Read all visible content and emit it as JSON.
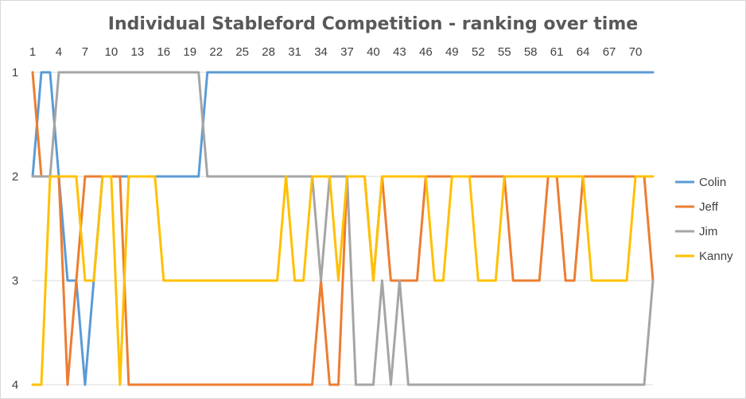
{
  "chart_data": {
    "type": "line",
    "title": "Individual Stableford Competition -  ranking over time",
    "xlabel": "",
    "ylabel": "",
    "x": [
      1,
      2,
      3,
      4,
      5,
      6,
      7,
      8,
      9,
      10,
      11,
      12,
      13,
      14,
      15,
      16,
      17,
      18,
      19,
      20,
      21,
      22,
      23,
      24,
      25,
      26,
      27,
      28,
      29,
      30,
      31,
      32,
      33,
      34,
      35,
      36,
      37,
      38,
      39,
      40,
      41,
      42,
      43,
      44,
      45,
      46,
      47,
      48,
      49,
      50,
      51,
      52,
      53,
      54,
      55,
      56,
      57,
      58,
      59,
      60,
      61,
      62,
      63,
      64,
      65,
      66,
      67,
      68,
      69,
      70,
      71,
      72
    ],
    "x_tick_labels": [
      "1",
      "4",
      "7",
      "10",
      "13",
      "16",
      "19",
      "22",
      "25",
      "28",
      "31",
      "34",
      "37",
      "40",
      "43",
      "46",
      "49",
      "52",
      "55",
      "58",
      "61",
      "64",
      "67",
      "70"
    ],
    "ylim": [
      1,
      4
    ],
    "y_ticks": [
      1,
      2,
      3,
      4
    ],
    "y_reversed": true,
    "y_axis_position": "top",
    "grid": true,
    "legend_position": "right",
    "series": [
      {
        "name": "Colin",
        "color": "#5B9BD5",
        "values": [
          2,
          1,
          1,
          2,
          3,
          3,
          4,
          3,
          2,
          2,
          2,
          2,
          2,
          2,
          2,
          2,
          2,
          2,
          2,
          2,
          1,
          1,
          1,
          1,
          1,
          1,
          1,
          1,
          1,
          1,
          1,
          1,
          1,
          1,
          1,
          1,
          1,
          1,
          1,
          1,
          1,
          1,
          1,
          1,
          1,
          1,
          1,
          1,
          1,
          1,
          1,
          1,
          1,
          1,
          1,
          1,
          1,
          1,
          1,
          1,
          1,
          1,
          1,
          1,
          1,
          1,
          1,
          1,
          1,
          1,
          1,
          1
        ]
      },
      {
        "name": "Jeff",
        "color": "#ED7D31",
        "values": [
          1,
          2,
          2,
          2,
          4,
          3,
          2,
          2,
          2,
          2,
          2,
          4,
          4,
          4,
          4,
          4,
          4,
          4,
          4,
          4,
          4,
          4,
          4,
          4,
          4,
          4,
          4,
          4,
          4,
          4,
          4,
          4,
          4,
          3,
          4,
          4,
          2,
          2,
          2,
          3,
          2,
          3,
          3,
          3,
          3,
          2,
          2,
          2,
          2,
          2,
          2,
          2,
          2,
          2,
          2,
          3,
          3,
          3,
          3,
          2,
          2,
          3,
          3,
          2,
          2,
          2,
          2,
          2,
          2,
          2,
          2,
          3
        ]
      },
      {
        "name": "Jim",
        "color": "#A5A5A5",
        "values": [
          2,
          2,
          2,
          1,
          1,
          1,
          1,
          1,
          1,
          1,
          1,
          1,
          1,
          1,
          1,
          1,
          1,
          1,
          1,
          1,
          2,
          2,
          2,
          2,
          2,
          2,
          2,
          2,
          2,
          2,
          2,
          2,
          2,
          3,
          2,
          2,
          2,
          4,
          4,
          4,
          3,
          4,
          3,
          4,
          4,
          4,
          4,
          4,
          4,
          4,
          4,
          4,
          4,
          4,
          4,
          4,
          4,
          4,
          4,
          4,
          4,
          4,
          4,
          4,
          4,
          4,
          4,
          4,
          4,
          4,
          4,
          3
        ]
      },
      {
        "name": "Kanny",
        "color": "#FFC000",
        "values": [
          4,
          4,
          2,
          2,
          2,
          2,
          3,
          3,
          2,
          2,
          4,
          2,
          2,
          2,
          2,
          3,
          3,
          3,
          3,
          3,
          3,
          3,
          3,
          3,
          3,
          3,
          3,
          3,
          3,
          2,
          3,
          3,
          2,
          2,
          2,
          3,
          2,
          2,
          2,
          3,
          2,
          2,
          2,
          2,
          2,
          2,
          3,
          3,
          2,
          2,
          2,
          3,
          3,
          3,
          2,
          2,
          2,
          2,
          2,
          2,
          2,
          2,
          2,
          2,
          3,
          3,
          3,
          3,
          3,
          2,
          2,
          2
        ]
      }
    ]
  }
}
